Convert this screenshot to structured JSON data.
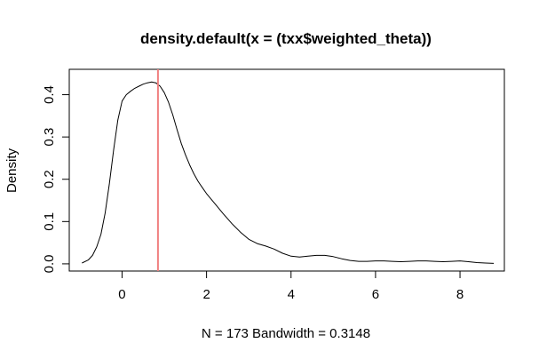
{
  "chart_data": {
    "type": "line",
    "title": "density.default(x = (txx$weighted_theta))",
    "xlabel": "N = 173   Bandwidth = 0.3148",
    "ylabel": "Density",
    "xlim": [
      -1.25,
      9.05
    ],
    "ylim": [
      -0.017,
      0.46
    ],
    "x_ticks": [
      0,
      2,
      4,
      6,
      8
    ],
    "x_tick_labels": [
      "0",
      "2",
      "4",
      "6",
      "8"
    ],
    "y_ticks": [
      0.0,
      0.1,
      0.2,
      0.3,
      0.4
    ],
    "y_tick_labels": [
      "0.0",
      "0.1",
      "0.2",
      "0.3",
      "0.4"
    ],
    "grid": false,
    "series": [
      {
        "name": "density",
        "color": "#000000",
        "x": [
          -0.95,
          -0.8,
          -0.7,
          -0.6,
          -0.5,
          -0.4,
          -0.3,
          -0.2,
          -0.1,
          0.0,
          0.1,
          0.2,
          0.3,
          0.4,
          0.5,
          0.6,
          0.7,
          0.8,
          0.9,
          1.0,
          1.1,
          1.2,
          1.3,
          1.4,
          1.5,
          1.6,
          1.7,
          1.8,
          1.9,
          2.0,
          2.2,
          2.4,
          2.6,
          2.8,
          3.0,
          3.2,
          3.4,
          3.6,
          3.8,
          4.0,
          4.2,
          4.4,
          4.6,
          4.8,
          5.0,
          5.2,
          5.4,
          5.6,
          5.8,
          6.0,
          6.2,
          6.4,
          6.6,
          6.8,
          7.0,
          7.2,
          7.4,
          7.6,
          7.8,
          8.0,
          8.2,
          8.4,
          8.6,
          8.8
        ],
        "y": [
          0.002,
          0.009,
          0.02,
          0.04,
          0.07,
          0.12,
          0.19,
          0.27,
          0.34,
          0.385,
          0.4,
          0.408,
          0.415,
          0.42,
          0.425,
          0.428,
          0.43,
          0.428,
          0.42,
          0.405,
          0.382,
          0.352,
          0.318,
          0.285,
          0.258,
          0.234,
          0.213,
          0.195,
          0.18,
          0.166,
          0.142,
          0.118,
          0.095,
          0.075,
          0.058,
          0.048,
          0.042,
          0.035,
          0.025,
          0.018,
          0.016,
          0.018,
          0.02,
          0.02,
          0.017,
          0.012,
          0.008,
          0.006,
          0.006,
          0.007,
          0.007,
          0.006,
          0.005,
          0.006,
          0.007,
          0.007,
          0.006,
          0.005,
          0.006,
          0.007,
          0.005,
          0.003,
          0.002,
          0.001
        ]
      }
    ],
    "annotations": [
      {
        "type": "vline",
        "x": 0.85,
        "color": "#f08080"
      }
    ]
  }
}
